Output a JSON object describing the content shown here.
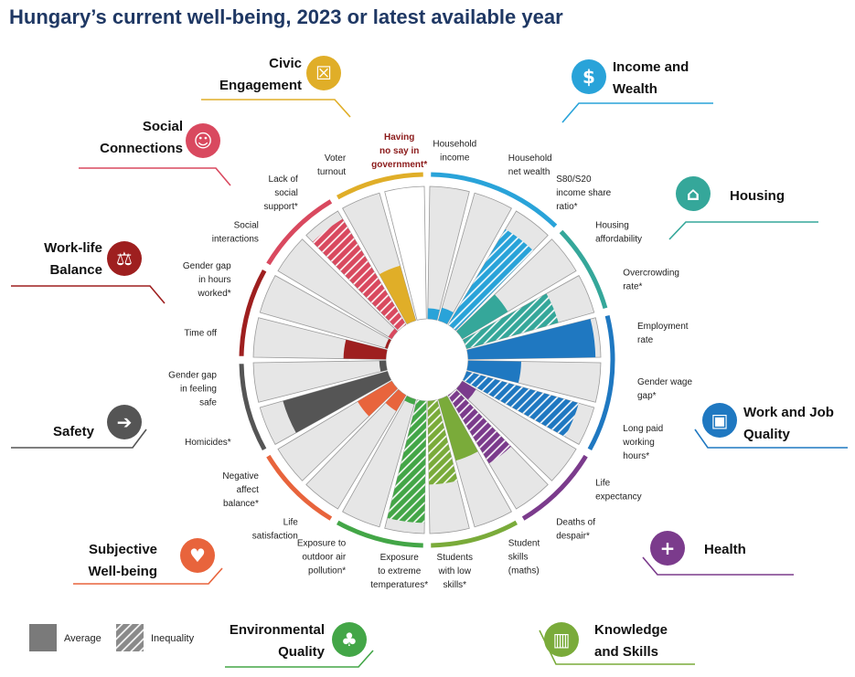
{
  "title": "Hungary’s current well-being, 2023 or latest available year",
  "legend": {
    "average": "Average",
    "inequality": "Inequality"
  },
  "chart_data": {
    "type": "radial-bar",
    "domains": [
      {
        "key": "income",
        "lines": [
          "Income and",
          "Wealth"
        ],
        "color": "#29a3d9",
        "icon": "money-icon"
      },
      {
        "key": "housing",
        "lines": [
          "Housing"
        ],
        "color": "#35a79a",
        "icon": "house-icon"
      },
      {
        "key": "work",
        "lines": [
          "Work and Job",
          "Quality"
        ],
        "color": "#1f78c1",
        "icon": "briefcase-icon"
      },
      {
        "key": "health",
        "lines": [
          "Health"
        ],
        "color": "#7b3b8c",
        "icon": "health-cross-icon"
      },
      {
        "key": "knowledge",
        "lines": [
          "Knowledge",
          "and Skills"
        ],
        "color": "#7aab3a",
        "icon": "book-icon"
      },
      {
        "key": "environment",
        "lines": [
          "Environmental",
          "Quality"
        ],
        "color": "#43a647",
        "icon": "tree-icon"
      },
      {
        "key": "subjective",
        "lines": [
          "Subjective",
          "Well-being"
        ],
        "color": "#e8643c",
        "icon": "heart-icon"
      },
      {
        "key": "safety",
        "lines": [
          "Safety"
        ],
        "color": "#555555",
        "icon": "running-person-icon"
      },
      {
        "key": "worklife",
        "lines": [
          "Work-life",
          "Balance"
        ],
        "color": "#9e1f1f",
        "icon": "scales-icon"
      },
      {
        "key": "social",
        "lines": [
          "Social",
          "Connections"
        ],
        "color": "#d9495f",
        "icon": "people-icon"
      },
      {
        "key": "civic",
        "lines": [
          "Civic",
          "Engagement"
        ],
        "color": "#e0ae28",
        "icon": "ballot-icon"
      }
    ],
    "indicators": [
      {
        "lines": [
          "Household",
          "income"
        ],
        "domain": "income",
        "value": 0.08,
        "pattern": "solid"
      },
      {
        "lines": [
          "Household",
          "net wealth"
        ],
        "domain": "income",
        "value": 0.1,
        "pattern": "solid"
      },
      {
        "lines": [
          "S80/S20",
          "income share",
          "ratio*"
        ],
        "domain": "income",
        "value": 0.84,
        "pattern": "hatch"
      },
      {
        "lines": [
          "Housing",
          "affordability"
        ],
        "domain": "housing",
        "value": 0.4,
        "pattern": "solid"
      },
      {
        "lines": [
          "Overcrowding",
          "rate*"
        ],
        "domain": "housing",
        "value": 0.72,
        "pattern": "hatch"
      },
      {
        "lines": [
          "Employment",
          "rate"
        ],
        "domain": "work",
        "value": 0.96,
        "pattern": "solid"
      },
      {
        "lines": [
          "Gender wage",
          "gap*"
        ],
        "domain": "work",
        "value": 0.4,
        "pattern": "solid"
      },
      {
        "lines": [
          "Long paid",
          "working",
          "hours*"
        ],
        "domain": "work",
        "value": 0.88,
        "pattern": "hatch"
      },
      {
        "lines": [
          "Life",
          "expectancy"
        ],
        "domain": "health",
        "value": 0.12,
        "pattern": "solid"
      },
      {
        "lines": [
          "Deaths of",
          "despair*"
        ],
        "domain": "health",
        "value": 0.6,
        "pattern": "hatch"
      },
      {
        "lines": [
          "Student",
          "skills",
          "(maths)"
        ],
        "domain": "knowledge",
        "value": 0.48,
        "pattern": "solid"
      },
      {
        "lines": [
          "Students",
          "with low",
          "skills*"
        ],
        "domain": "knowledge",
        "value": 0.63,
        "pattern": "hatch"
      },
      {
        "lines": [
          "Exposure",
          "to extreme",
          "temperatures*"
        ],
        "domain": "environment",
        "value": 0.92,
        "pattern": "hatch"
      },
      {
        "lines": [
          "Exposure to",
          "outdoor air",
          "pollution*"
        ],
        "domain": "environment",
        "value": 0.04,
        "pattern": "solid"
      },
      {
        "lines": [
          "Life",
          "satisfaction"
        ],
        "domain": "subjective",
        "value": 0.14,
        "pattern": "solid"
      },
      {
        "lines": [
          "Negative",
          "affect",
          "balance*"
        ],
        "domain": "subjective",
        "value": 0.3,
        "pattern": "solid"
      },
      {
        "lines": [
          "Homicides*"
        ],
        "domain": "safety",
        "value": 0.82,
        "pattern": "solid"
      },
      {
        "lines": [
          "Gender gap",
          "in feeling",
          "safe"
        ],
        "domain": "safety",
        "value": 0.05,
        "pattern": "solid"
      },
      {
        "lines": [
          "Time off"
        ],
        "domain": "worklife",
        "value": 0.32,
        "pattern": "solid"
      },
      {
        "lines": [
          "Gender gap",
          "in hours",
          "worked*"
        ],
        "domain": "worklife",
        "value": 0.02,
        "pattern": "solid"
      },
      {
        "lines": [
          "Social",
          "interactions"
        ],
        "domain": "social",
        "value": 0.03,
        "pattern": "solid"
      },
      {
        "lines": [
          "Lack of",
          "social",
          "support*"
        ],
        "domain": "social",
        "value": 0.93,
        "pattern": "hatch"
      },
      {
        "lines": [
          "Voter",
          "turnout"
        ],
        "domain": "civic",
        "value": 0.43,
        "pattern": "solid"
      },
      {
        "lines": [
          "Having",
          "no say in",
          "government*"
        ],
        "domain": "civic",
        "value": null,
        "pattern": "none"
      }
    ]
  }
}
